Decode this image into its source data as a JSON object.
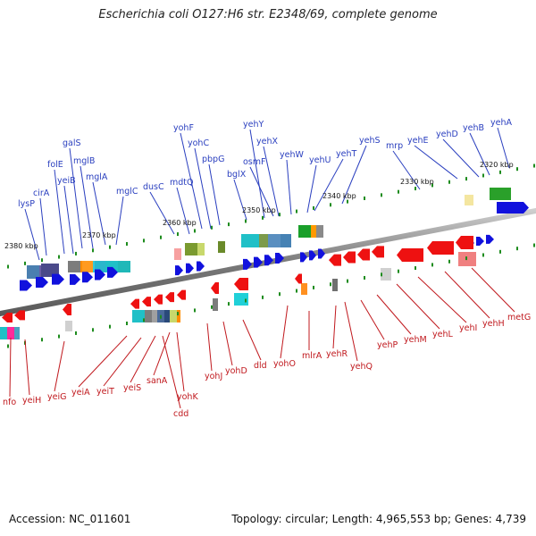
{
  "title": "Escherichia coli O127:H6 str. E2348/69, complete genome",
  "footer": {
    "accession": "Accession: NC_011601",
    "stats": "Topology: circular; Length: 4,965,553 bp; Genes: 4,739"
  },
  "colors": {
    "forward_gene": "#1111dd",
    "reverse_gene": "#ee1111",
    "forward_label": "#2a3fbf",
    "reverse_label": "#c0181d",
    "backbone": "#8c8c8c",
    "tick": "#1e8c1e"
  },
  "ticks": [
    "2380 kbp",
    "2370 kbp",
    "2360 kbp",
    "2350 kbp",
    "2340 kbp",
    "2330 kbp",
    "2320 kbp"
  ],
  "forward_genes": [
    "lysP",
    "cirA",
    "folE",
    "yeiB",
    "galS",
    "mglB",
    "mglA",
    "mglC",
    "dusC",
    "mdtQ",
    "yohF",
    "yohC",
    "pbpG",
    "bglX",
    "yehY",
    "osmF",
    "yehX",
    "yehW",
    "yehU",
    "yehT",
    "yehS",
    "mrp",
    "yehE",
    "yehD",
    "yehB",
    "yehA"
  ],
  "reverse_genes": [
    "nfo",
    "yeiH",
    "yeiG",
    "yeiA",
    "yeiT",
    "yeiS",
    "sanA",
    "yohK",
    "cdd",
    "yohJ",
    "yohD",
    "dld",
    "yohO",
    "mlrA",
    "yehR",
    "yehQ",
    "yehP",
    "yehM",
    "yehL",
    "yehI",
    "yehH",
    "metG"
  ]
}
